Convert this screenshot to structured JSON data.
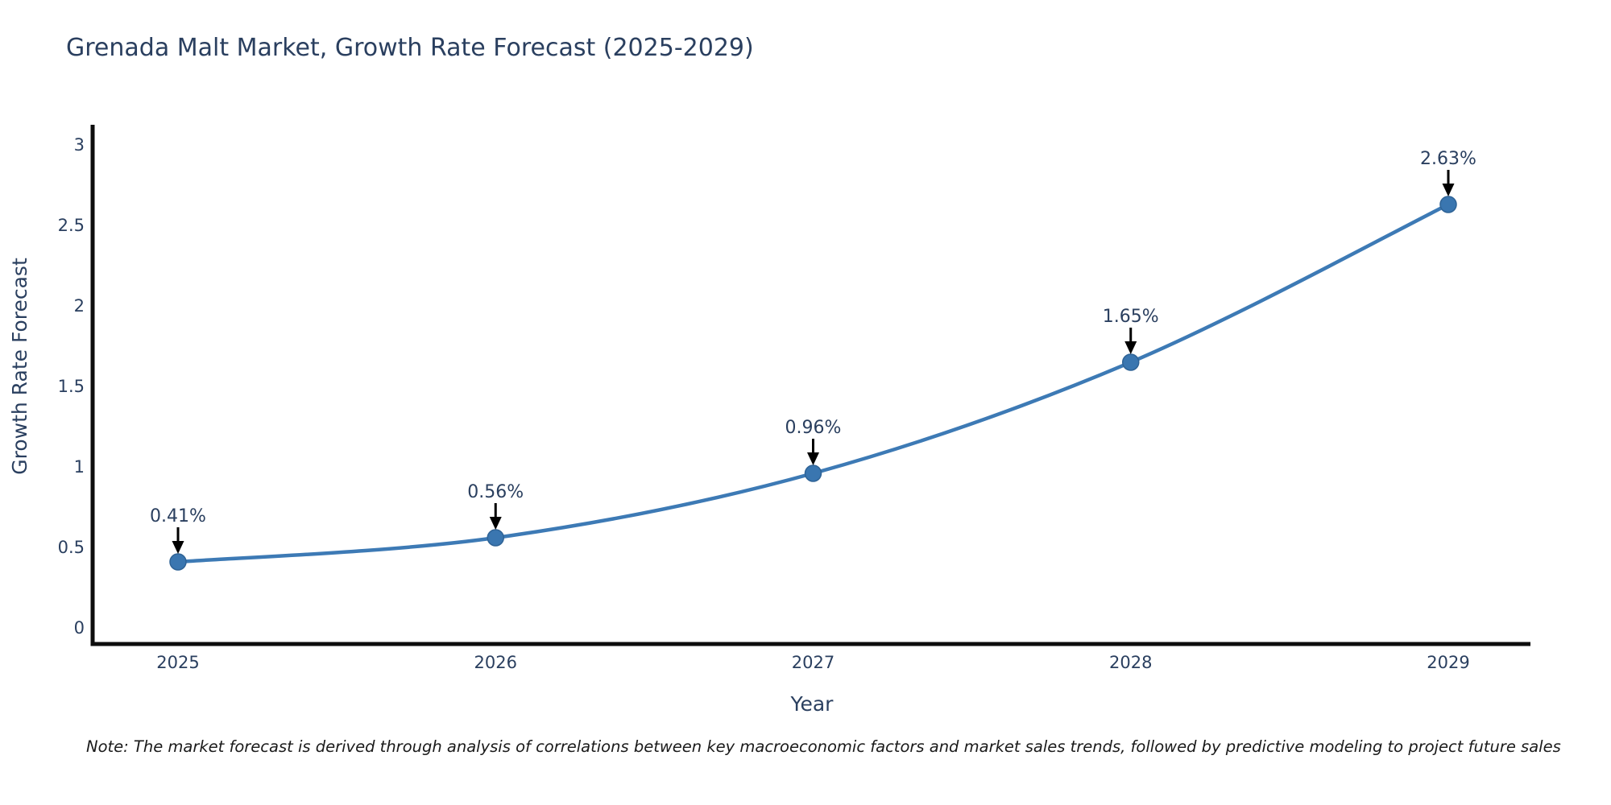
{
  "chart_data": {
    "type": "line",
    "title": "Grenada Malt Market, Growth Rate Forecast (2025-2029)",
    "xlabel": "Year",
    "ylabel": "Growth Rate Forecast",
    "categories": [
      2025,
      2026,
      2027,
      2028,
      2029
    ],
    "series": [
      {
        "name": "Growth Rate Forecast",
        "values": [
          0.41,
          0.56,
          0.96,
          1.65,
          2.63
        ]
      }
    ],
    "annotations": [
      "0.41%",
      "0.56%",
      "0.96%",
      "1.65%",
      "2.63%"
    ],
    "yticks": [
      0,
      0.5,
      1,
      1.5,
      2,
      2.5,
      3
    ],
    "ylim": [
      0,
      3.2
    ],
    "line_shape": "spline",
    "grid": false,
    "legend": false,
    "colors": {
      "line": "#3d7ab5",
      "marker_fill": "#3a76b0",
      "marker_edge": "#2f6396",
      "axis": "#0d0d0d",
      "arrow": "#000000",
      "annotation_text": "#2a3f5f",
      "tick_text": "#2a3f5f",
      "title_text": "#2a3f5f"
    }
  },
  "note": {
    "text": "Note: The market forecast is derived through analysis of correlations between key macroeconomic factors and market sales trends, followed by predictive modeling to project future sales"
  }
}
